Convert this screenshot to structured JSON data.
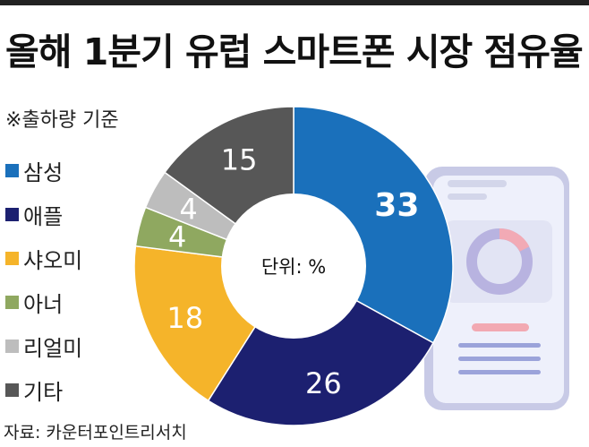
{
  "title": "올해 1분기 유럽 스마트폰 시장 점유율",
  "subtitle": "※출하량 기준",
  "source": "자료: 카운터포인트리서치",
  "center_label": "단위: %",
  "chart_data": {
    "type": "pie",
    "title": "올해 1분기 유럽 스마트폰 시장 점유율",
    "unit": "%",
    "categories": [
      "삼성",
      "애플",
      "샤오미",
      "아너",
      "리얼미",
      "기타"
    ],
    "values": [
      33,
      26,
      18,
      4,
      4,
      15
    ],
    "colors": [
      "#1a70bb",
      "#1c2070",
      "#f5b42a",
      "#8fa860",
      "#bdbdbd",
      "#575757"
    ]
  },
  "legend": [
    {
      "label": "삼성",
      "color": "#1a70bb"
    },
    {
      "label": "애플",
      "color": "#1c2070"
    },
    {
      "label": "샤오미",
      "color": "#f5b42a"
    },
    {
      "label": "아너",
      "color": "#8fa860"
    },
    {
      "label": "리얼미",
      "color": "#bdbdbd"
    },
    {
      "label": "기타",
      "color": "#575757"
    }
  ]
}
